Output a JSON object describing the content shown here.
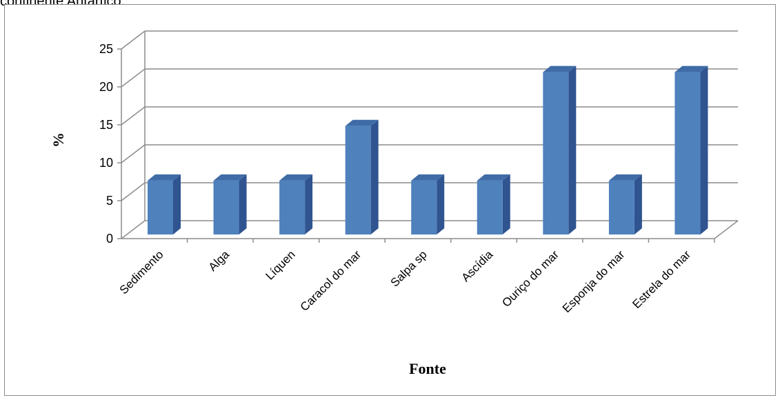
{
  "caption": "continente Antártico.",
  "chart_data": {
    "type": "bar",
    "style": "3d-column",
    "categories": [
      "Sedimento",
      "Alga",
      "Líquen",
      "Caracol do mar",
      "Salpa sp",
      "Ascídia",
      "Ouriço do mar",
      "Esponja do mar",
      "Estrela do mar"
    ],
    "series": [
      {
        "values": [
          7.1,
          7.1,
          7.1,
          14.3,
          7.1,
          7.1,
          21.4,
          7.1,
          21.4
        ]
      }
    ],
    "title": "",
    "xlabel": "Fonte",
    "ylabel": "%",
    "ylim": [
      0,
      25
    ],
    "yticks": [
      0,
      5,
      10,
      15,
      20,
      25
    ],
    "grid": true,
    "legend": "none",
    "colors": {
      "bar_front": "#4F81BD",
      "bar_side": "#2F5490",
      "bar_top": "#3F6CA6",
      "grid": "#8C8C8C"
    }
  }
}
